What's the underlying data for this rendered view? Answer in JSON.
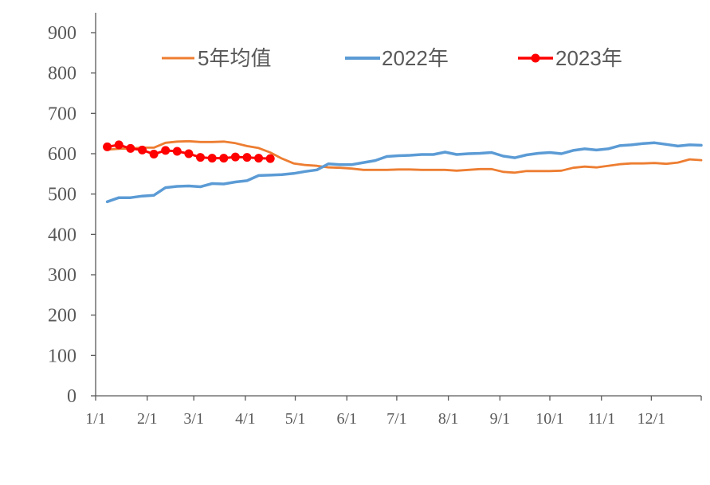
{
  "chart_data": {
    "type": "line",
    "title": "",
    "xlabel": "",
    "ylabel": "",
    "ylim": [
      0,
      900
    ],
    "yticks": [
      0,
      100,
      200,
      300,
      400,
      500,
      600,
      700,
      800,
      900
    ],
    "x_domain": [
      0,
      364
    ],
    "xtick_labels": [
      "1/1",
      "2/1",
      "3/1",
      "4/1",
      "5/1",
      "6/1",
      "7/1",
      "8/1",
      "9/1",
      "10/1",
      "11/1",
      "12/1"
    ],
    "xtick_days": [
      0,
      31,
      59,
      90,
      120,
      151,
      181,
      212,
      243,
      273,
      304,
      334
    ],
    "grid": false,
    "legend_position": "top",
    "colors": {
      "avg5": "#ED7D31",
      "y2022": "#5B9BD5",
      "y2023": "#FF0000",
      "axis": "#595959"
    },
    "series": [
      {
        "key": "avg5",
        "name": "5年均值",
        "style": "line",
        "x": [
          7,
          14,
          21,
          28,
          35,
          42,
          49,
          56,
          63,
          70,
          77,
          84,
          91,
          98,
          105,
          112,
          119,
          126,
          133,
          140,
          147,
          154,
          161,
          168,
          175,
          182,
          189,
          196,
          203,
          210,
          217,
          224,
          231,
          238,
          245,
          252,
          259,
          266,
          273,
          280,
          287,
          294,
          301,
          308,
          315,
          322,
          329,
          336,
          343,
          350,
          357,
          364
        ],
        "values": [
          610,
          612,
          613,
          615,
          615,
          627,
          630,
          631,
          629,
          629,
          630,
          626,
          619,
          614,
          603,
          588,
          576,
          572,
          570,
          566,
          565,
          563,
          560,
          560,
          560,
          561,
          561,
          560,
          560,
          560,
          558,
          560,
          562,
          562,
          555,
          553,
          557,
          557,
          557,
          558,
          565,
          568,
          566,
          570,
          574,
          576,
          576,
          577,
          575,
          578,
          586,
          584
        ]
      },
      {
        "key": "y2022",
        "name": "2022年",
        "style": "line",
        "x": [
          7,
          14,
          21,
          28,
          35,
          42,
          49,
          56,
          63,
          70,
          77,
          84,
          91,
          98,
          105,
          112,
          119,
          126,
          133,
          140,
          147,
          154,
          161,
          168,
          175,
          182,
          189,
          196,
          203,
          210,
          217,
          224,
          231,
          238,
          245,
          252,
          259,
          266,
          273,
          280,
          287,
          294,
          301,
          308,
          315,
          322,
          329,
          336,
          343,
          350,
          357,
          364
        ],
        "values": [
          481,
          491,
          491,
          495,
          497,
          516,
          519,
          520,
          518,
          526,
          525,
          530,
          533,
          546,
          547,
          548,
          551,
          556,
          560,
          575,
          573,
          573,
          578,
          583,
          593,
          595,
          596,
          598,
          598,
          604,
          598,
          600,
          601,
          603,
          594,
          590,
          597,
          601,
          603,
          600,
          608,
          612,
          609,
          612,
          620,
          622,
          625,
          627,
          623,
          619,
          622,
          621
        ]
      },
      {
        "key": "y2023",
        "name": "2023年",
        "style": "line-marker",
        "x": [
          7,
          14,
          21,
          28,
          35,
          42,
          49,
          56,
          63,
          70,
          77,
          84,
          91,
          98,
          105
        ],
        "values": [
          617,
          622,
          613,
          609,
          599,
          608,
          606,
          600,
          591,
          589,
          589,
          592,
          591,
          589,
          588
        ]
      }
    ]
  }
}
